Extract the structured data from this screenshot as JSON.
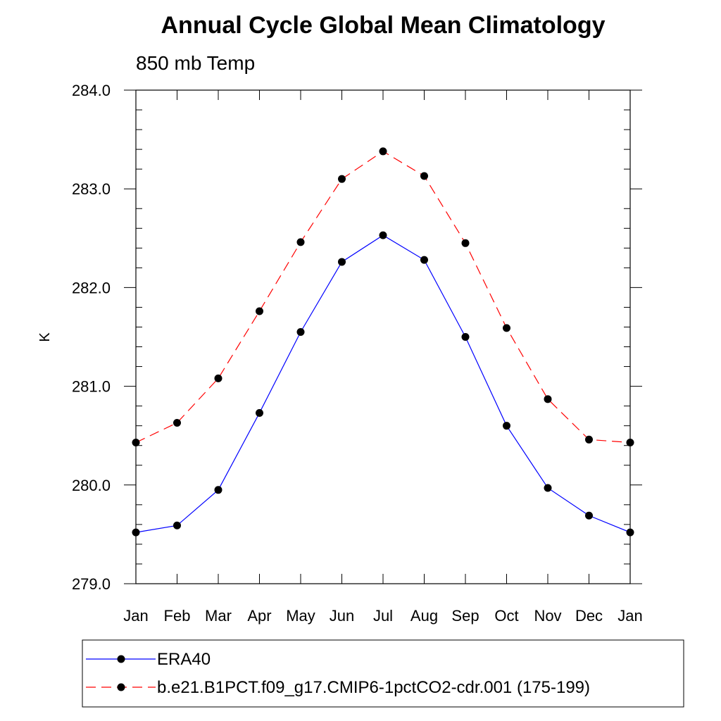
{
  "chart_data": {
    "type": "line",
    "title": "Annual Cycle Global Mean Climatology",
    "subtitle": "850 mb Temp",
    "xlabel": "",
    "ylabel": "K",
    "categories": [
      "Jan",
      "Feb",
      "Mar",
      "Apr",
      "May",
      "Jun",
      "Jul",
      "Aug",
      "Sep",
      "Oct",
      "Nov",
      "Dec",
      "Jan"
    ],
    "ylim": [
      279.0,
      284.0
    ],
    "yticks": [
      279.0,
      280.0,
      281.0,
      282.0,
      283.0,
      284.0
    ],
    "ytick_labels": [
      "279.0",
      "280.0",
      "281.0",
      "282.0",
      "283.0",
      "284.0"
    ],
    "grid": false,
    "legend_position": "bottom",
    "series": [
      {
        "name": "ERA40",
        "color": "#0000ff",
        "line_style": "solid",
        "marker": "filled-circle",
        "values": [
          279.52,
          279.59,
          279.95,
          280.73,
          281.55,
          282.26,
          282.53,
          282.28,
          281.5,
          280.6,
          279.97,
          279.69,
          279.52
        ]
      },
      {
        "name": "b.e21.B1PCT.f09_g17.CMIP6-1pctCO2-cdr.001 (175-199)",
        "color": "#ff0000",
        "line_style": "dashed",
        "marker": "filled-circle",
        "values": [
          280.43,
          280.63,
          281.08,
          281.76,
          282.46,
          283.1,
          283.38,
          283.13,
          282.45,
          281.59,
          280.87,
          280.46,
          280.43
        ]
      }
    ]
  }
}
